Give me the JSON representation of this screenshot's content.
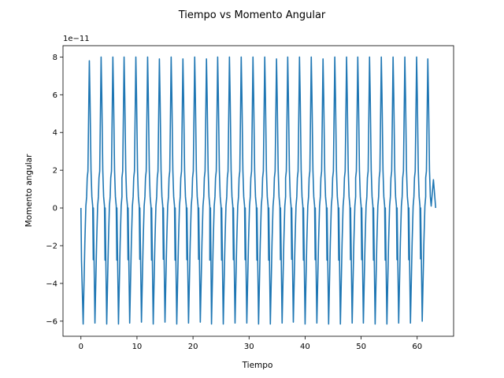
{
  "chart_data": {
    "type": "line",
    "title": "Tiempo vs Momento Angular",
    "xlabel": "Tiempo",
    "ylabel": "Momento angular",
    "offset_text": "1e−11",
    "xlim": [
      -3.2,
      66.5
    ],
    "ylim": [
      -6.8,
      8.6
    ],
    "xticks": [
      0,
      10,
      20,
      30,
      40,
      50,
      60
    ],
    "yticks": [
      -6,
      -4,
      -2,
      0,
      2,
      4,
      6,
      8
    ],
    "grid": false,
    "line_color": "#1f77b4",
    "series": [
      {
        "period": 2.09,
        "peak_times": [
          1.5,
          3.6,
          5.7,
          7.7,
          9.8,
          11.9,
          14.0,
          16.1,
          18.2,
          20.3,
          22.4,
          24.4,
          26.5,
          28.6,
          30.7,
          32.8,
          34.9,
          36.9,
          39.0,
          41.1,
          43.2,
          45.3,
          47.4,
          49.4,
          51.5,
          53.6,
          55.7,
          57.8,
          59.9,
          61.9
        ],
        "peak_values": [
          7.8,
          8.0,
          8.0,
          8.0,
          8.0,
          8.0,
          7.9,
          8.0,
          7.9,
          8.0,
          7.9,
          8.0,
          8.0,
          8.0,
          8.0,
          8.0,
          7.9,
          8.0,
          8.0,
          8.0,
          7.9,
          8.0,
          8.0,
          8.0,
          8.0,
          8.0,
          8.0,
          8.0,
          8.0,
          7.9
        ],
        "trough_times": [
          0.4,
          2.5,
          4.6,
          6.7,
          8.7,
          10.8,
          12.9,
          15.0,
          17.1,
          19.2,
          21.3,
          23.3,
          25.4,
          27.5,
          29.6,
          31.7,
          33.8,
          35.9,
          37.9,
          40.0,
          42.1,
          44.2,
          46.3,
          48.4,
          50.4,
          52.5,
          54.6,
          56.7,
          58.8,
          60.9
        ],
        "trough_values": [
          -6.15,
          -6.1,
          -6.15,
          -6.15,
          -6.1,
          -6.05,
          -6.15,
          -6.05,
          -6.15,
          -6.1,
          -6.05,
          -6.15,
          -6.15,
          -6.1,
          -6.1,
          -6.15,
          -6.15,
          -6.1,
          -6.05,
          -6.15,
          -6.1,
          -6.15,
          -6.15,
          -6.1,
          -6.1,
          -6.15,
          -6.15,
          -6.1,
          -6.1,
          -6.0
        ],
        "x_start": 0,
        "x_end": 63.3
      }
    ]
  }
}
